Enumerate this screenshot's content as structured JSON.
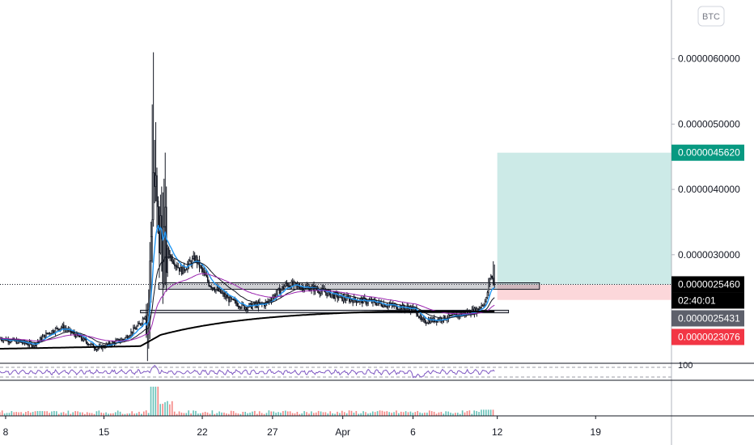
{
  "currency_badge": "BTC",
  "chart_data": {
    "type": "candlestick",
    "symbol_currency": "BTC",
    "y_ticks": [
      "0.0000060000",
      "0.0000050000",
      "0.0000040000",
      "0.0000030000"
    ],
    "y_tick_values": [
      6e-06,
      5e-06,
      4e-06,
      3e-06
    ],
    "ylim": [
      1.35e-06,
      6.9e-06
    ],
    "x_ticks": [
      "8",
      "15",
      "22",
      "27",
      "Apr",
      "6",
      "12",
      "19"
    ],
    "x_tick_dates": [
      8,
      15,
      22,
      27,
      32,
      37,
      43,
      50
    ],
    "xlim": [
      7.6,
      55.4
    ],
    "last_candle_day": 42.8,
    "price_labels": [
      {
        "role": "target",
        "text": "0.0000045620",
        "value": 4.562e-06,
        "color": "#089981"
      },
      {
        "role": "last",
        "text": "0.0000025460",
        "value": 2.546e-06,
        "color": "#000000"
      },
      {
        "role": "countdown",
        "text": "02:40:01",
        "color": "#000000"
      },
      {
        "role": "entry",
        "text": "0.0000025431",
        "value": 2.5431e-06,
        "color": "#5d606b"
      },
      {
        "role": "stop",
        "text": "0.0000023076",
        "value": 2.3076e-06,
        "color": "#f23645"
      }
    ],
    "rsi_label": "100",
    "colors": {
      "ema_fast": "#2196f3",
      "ema_mid": "#131722",
      "ema_slow": "#9c27b0",
      "ema_long": "#000000",
      "target_zone": "rgba(0,150,136,0.2)",
      "stop_zone": "rgba(242,54,69,0.2)",
      "volume_up": "#26a69a",
      "volume_down": "#ef5350"
    },
    "zones": [
      {
        "name": "resistance-box",
        "top": 2.57e-06,
        "bottom": 2.47e-06,
        "from_day": 18.9,
        "to_day": 46.0
      },
      {
        "name": "support-box",
        "top": 2.15e-06,
        "bottom": 2.11e-06,
        "from_day": 17.6,
        "to_day": 43.8
      }
    ],
    "position": {
      "entry": 2.5431e-06,
      "target": 4.562e-06,
      "stop": 2.3076e-06,
      "from_day": 43.0,
      "to_day": 55.4
    }
  }
}
